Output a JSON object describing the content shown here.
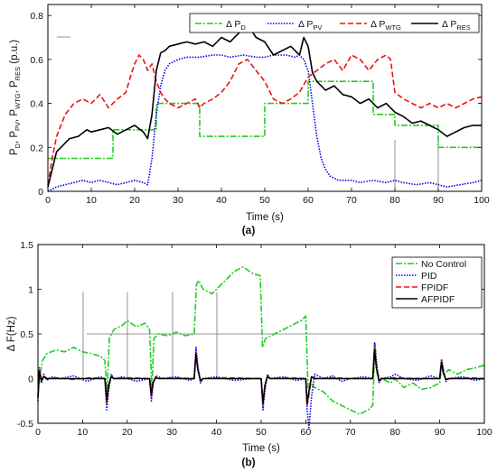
{
  "chart_data": [
    {
      "type": "line",
      "panel_label": "(a)",
      "title": "",
      "xlabel": "Time (s)",
      "ylabel": {
        "parts": [
          "P",
          "D",
          ", P",
          "PV",
          ", P",
          "WTG",
          ", P",
          "RES",
          " (p.u.)"
        ]
      },
      "xlim": [
        0,
        100
      ],
      "ylim": [
        0,
        0.85
      ],
      "xticks": [
        "0",
        "10",
        "20",
        "30",
        "40",
        "50",
        "60",
        "70",
        "80",
        "90",
        "100"
      ],
      "yticks": [
        "0",
        "0.2",
        "0.4",
        "0.6",
        "0.8"
      ],
      "ytick_values": [
        0,
        0.2,
        0.4,
        0.6,
        0.8
      ],
      "grid": false,
      "legend_position": "top-right",
      "series": [
        {
          "name": {
            "base": "Δ P",
            "sub": "D"
          },
          "color": "#22cc22",
          "style": "dashdot",
          "x": [
            0,
            7,
            7,
            15,
            15,
            25,
            25,
            35,
            35,
            50,
            50,
            60,
            60,
            75,
            75,
            80,
            80,
            90,
            90,
            100
          ],
          "y": [
            0.15,
            0.15,
            0.15,
            0.15,
            0.28,
            0.28,
            0.4,
            0.4,
            0.25,
            0.25,
            0.4,
            0.4,
            0.5,
            0.5,
            0.35,
            0.35,
            0.3,
            0.3,
            0.2,
            0.2
          ]
        },
        {
          "name": {
            "base": "Δ P",
            "sub": "PV"
          },
          "color": "#0000ee",
          "style": "dotted",
          "x": [
            0,
            1,
            2,
            4,
            6,
            8,
            10,
            12,
            14,
            16,
            18,
            20,
            22,
            23,
            24,
            25,
            26,
            27,
            28,
            30,
            32,
            35,
            38,
            40,
            42,
            45,
            48,
            50,
            52,
            55,
            57,
            58,
            59,
            60,
            61,
            62,
            63,
            64,
            65,
            67,
            70,
            72,
            75,
            78,
            80,
            82,
            85,
            88,
            90,
            92,
            95,
            98,
            100
          ],
          "y": [
            0.0,
            0.01,
            0.02,
            0.03,
            0.04,
            0.05,
            0.04,
            0.05,
            0.04,
            0.03,
            0.04,
            0.05,
            0.04,
            0.03,
            0.15,
            0.35,
            0.48,
            0.55,
            0.58,
            0.6,
            0.61,
            0.61,
            0.62,
            0.62,
            0.61,
            0.62,
            0.61,
            0.61,
            0.62,
            0.62,
            0.61,
            0.62,
            0.6,
            0.55,
            0.4,
            0.25,
            0.15,
            0.1,
            0.07,
            0.05,
            0.05,
            0.04,
            0.05,
            0.04,
            0.05,
            0.04,
            0.03,
            0.04,
            0.03,
            0.02,
            0.03,
            0.04,
            0.05
          ]
        },
        {
          "name": {
            "base": "Δ P",
            "sub": "WTG"
          },
          "color": "#ee1111",
          "style": "dashed",
          "x": [
            0,
            1,
            2,
            3,
            4,
            6,
            8,
            10,
            12,
            14,
            16,
            18,
            19,
            20,
            21,
            22,
            23,
            24,
            25,
            26,
            27,
            28,
            30,
            32,
            34,
            35,
            36,
            38,
            40,
            42,
            44,
            46,
            48,
            50,
            52,
            54,
            56,
            58,
            60,
            62,
            64,
            66,
            68,
            70,
            72,
            74,
            76,
            78,
            79,
            80,
            82,
            84,
            86,
            88,
            90,
            92,
            94,
            96,
            98,
            100
          ],
          "y": [
            0.03,
            0.15,
            0.25,
            0.3,
            0.35,
            0.4,
            0.42,
            0.4,
            0.44,
            0.38,
            0.42,
            0.45,
            0.52,
            0.58,
            0.62,
            0.6,
            0.55,
            0.58,
            0.5,
            0.45,
            0.42,
            0.4,
            0.38,
            0.4,
            0.42,
            0.38,
            0.4,
            0.42,
            0.45,
            0.5,
            0.58,
            0.6,
            0.55,
            0.5,
            0.42,
            0.4,
            0.42,
            0.45,
            0.52,
            0.55,
            0.58,
            0.6,
            0.55,
            0.62,
            0.6,
            0.55,
            0.6,
            0.62,
            0.6,
            0.45,
            0.42,
            0.4,
            0.38,
            0.4,
            0.38,
            0.4,
            0.38,
            0.4,
            0.42,
            0.43
          ]
        },
        {
          "name": {
            "base": "Δ P",
            "sub": "RES"
          },
          "color": "#000000",
          "style": "solid",
          "x": [
            0,
            1,
            2,
            3,
            5,
            7,
            9,
            10,
            12,
            14,
            16,
            18,
            20,
            22,
            23,
            24,
            25,
            26,
            27,
            28,
            30,
            32,
            34,
            36,
            38,
            40,
            42,
            44,
            46,
            48,
            50,
            52,
            54,
            56,
            58,
            59,
            60,
            61,
            62,
            64,
            66,
            68,
            70,
            72,
            74,
            76,
            78,
            80,
            82,
            84,
            86,
            88,
            90,
            92,
            94,
            96,
            98,
            100
          ],
          "y": [
            0.02,
            0.1,
            0.18,
            0.2,
            0.24,
            0.25,
            0.28,
            0.27,
            0.28,
            0.29,
            0.26,
            0.28,
            0.3,
            0.27,
            0.24,
            0.35,
            0.55,
            0.63,
            0.64,
            0.66,
            0.67,
            0.68,
            0.67,
            0.68,
            0.66,
            0.7,
            0.68,
            0.72,
            0.76,
            0.7,
            0.68,
            0.62,
            0.64,
            0.66,
            0.62,
            0.7,
            0.66,
            0.54,
            0.5,
            0.46,
            0.48,
            0.44,
            0.43,
            0.4,
            0.42,
            0.38,
            0.4,
            0.36,
            0.34,
            0.31,
            0.32,
            0.3,
            0.28,
            0.25,
            0.27,
            0.29,
            0.3,
            0.3
          ]
        }
      ]
    },
    {
      "type": "line",
      "panel_label": "(b)",
      "title": "",
      "xlabel": "Time (s)",
      "ylabel": {
        "parts": [
          "Δ F(Hz)"
        ]
      },
      "xlim": [
        0,
        100
      ],
      "ylim": [
        -0.5,
        1.5
      ],
      "xticks": [
        "0",
        "10",
        "20",
        "30",
        "40",
        "50",
        "60",
        "70",
        "80",
        "90",
        "100"
      ],
      "yticks": [
        "-0.5",
        "0",
        "0.5",
        "1",
        "1.5"
      ],
      "ytick_values": [
        -0.5,
        0,
        0.5,
        1,
        1.5
      ],
      "grid": false,
      "legend_position": "top-right",
      "series": [
        {
          "name": {
            "base": "No Control",
            "sub": ""
          },
          "color": "#22cc22",
          "style": "dashdot",
          "x": [
            0,
            0.5,
            1,
            2,
            4,
            6,
            8,
            10,
            12,
            14,
            15,
            15.5,
            16,
            17,
            19,
            20,
            22,
            24,
            25,
            25.5,
            26,
            27,
            29,
            31,
            33,
            35,
            35.5,
            36,
            37,
            39,
            40,
            42,
            44,
            46,
            48,
            49.8,
            50.3,
            51,
            53,
            55,
            57,
            59,
            60,
            60.5,
            61,
            62,
            64,
            66,
            68,
            70,
            72,
            74,
            75,
            75.5,
            76,
            77,
            79,
            80,
            82,
            84,
            86,
            88,
            90,
            90.5,
            91,
            92,
            94,
            96,
            98,
            100
          ],
          "y": [
            -0.2,
            0.05,
            0.2,
            0.28,
            0.32,
            0.3,
            0.35,
            0.3,
            0.28,
            0.25,
            0.2,
            -0.15,
            0.45,
            0.55,
            0.6,
            0.65,
            0.58,
            0.62,
            0.55,
            -0.1,
            0.45,
            0.5,
            0.48,
            0.52,
            0.48,
            0.5,
            1.05,
            1.1,
            1.0,
            0.95,
            1.0,
            1.1,
            1.2,
            1.25,
            1.18,
            1.15,
            0.35,
            0.45,
            0.5,
            0.55,
            0.6,
            0.65,
            0.7,
            -0.1,
            -0.05,
            -0.1,
            -0.15,
            -0.25,
            -0.3,
            -0.35,
            -0.4,
            -0.35,
            -0.3,
            0.4,
            0.05,
            0.0,
            -0.05,
            0.0,
            -0.1,
            -0.05,
            -0.12,
            -0.1,
            -0.05,
            0.2,
            0.05,
            0.1,
            0.05,
            0.1,
            0.12,
            0.15
          ]
        },
        {
          "name": {
            "base": "PID",
            "sub": ""
          },
          "color": "#0000ee",
          "style": "dotted",
          "x": [
            0,
            0.3,
            0.8,
            1.3,
            2,
            3,
            5,
            8,
            11,
            14,
            15,
            15.4,
            15.8,
            16.4,
            17,
            19,
            22,
            25,
            25.4,
            25.8,
            26.4,
            28,
            31,
            34,
            35,
            35.4,
            35.8,
            36.4,
            37,
            40,
            44,
            48,
            50,
            50.4,
            50.8,
            51.4,
            52,
            55,
            58,
            60,
            60.3,
            60.7,
            61.3,
            62,
            64,
            66,
            68,
            70,
            73,
            75,
            75.4,
            75.8,
            76.4,
            77,
            79,
            80,
            82,
            85,
            88,
            90,
            90.4,
            90.8,
            91.4,
            92,
            95,
            98,
            100
          ],
          "y": [
            -0.25,
            0.12,
            -0.05,
            0.05,
            -0.02,
            0.02,
            0.0,
            0.03,
            -0.03,
            0.02,
            0.0,
            -0.35,
            -0.15,
            0.05,
            0.0,
            0.02,
            -0.03,
            0.0,
            -0.25,
            -0.05,
            0.03,
            0.0,
            0.02,
            -0.02,
            0.0,
            0.35,
            0.15,
            -0.05,
            0.0,
            0.02,
            -0.02,
            0.0,
            0.0,
            -0.35,
            -0.15,
            0.05,
            0.0,
            0.02,
            -0.02,
            0.0,
            -0.35,
            -0.55,
            -0.2,
            0.05,
            0.0,
            0.03,
            -0.03,
            0.0,
            0.02,
            0.0,
            0.4,
            0.2,
            -0.05,
            0.0,
            0.02,
            0.05,
            0.0,
            -0.02,
            0.03,
            0.0,
            0.22,
            0.1,
            -0.03,
            0.0,
            0.02,
            -0.02,
            0.0
          ]
        },
        {
          "name": {
            "base": "FPIDF",
            "sub": ""
          },
          "color": "#ee1111",
          "style": "dashed",
          "x": [
            0,
            0.3,
            0.8,
            1.3,
            2,
            4,
            8,
            12,
            15,
            15.4,
            15.8,
            16.4,
            17,
            20,
            25,
            25.4,
            25.8,
            26.4,
            27,
            30,
            35,
            35.4,
            35.8,
            36.4,
            37,
            42,
            50,
            50.4,
            50.8,
            51.4,
            52,
            56,
            60,
            60.3,
            60.7,
            61.3,
            62,
            66,
            70,
            75,
            75.4,
            75.8,
            76.4,
            77,
            80,
            85,
            90,
            90.4,
            90.8,
            91.4,
            92,
            96,
            100
          ],
          "y": [
            -0.22,
            0.1,
            -0.03,
            0.03,
            0.0,
            0.01,
            -0.01,
            0.01,
            0.0,
            -0.28,
            -0.1,
            0.03,
            0.0,
            0.01,
            0.0,
            -0.2,
            -0.05,
            0.02,
            0.0,
            0.01,
            0.0,
            0.3,
            0.12,
            -0.03,
            0.0,
            0.01,
            0.0,
            -0.3,
            -0.1,
            0.03,
            0.0,
            0.01,
            0.0,
            -0.3,
            -0.18,
            0.03,
            0.0,
            0.01,
            0.0,
            0.0,
            0.35,
            0.15,
            -0.03,
            0.0,
            0.01,
            0.0,
            0.0,
            0.2,
            0.08,
            -0.02,
            0.0,
            0.01,
            0.0
          ]
        },
        {
          "name": {
            "base": "AFPIDF",
            "sub": ""
          },
          "color": "#000000",
          "style": "solid",
          "x": [
            0,
            0.3,
            0.8,
            1.3,
            2,
            4,
            8,
            12,
            15,
            15.4,
            15.8,
            16.4,
            17,
            20,
            25,
            25.4,
            25.8,
            26.4,
            27,
            30,
            35,
            35.4,
            35.8,
            36.4,
            37,
            42,
            50,
            50.4,
            50.8,
            51.4,
            52,
            56,
            60,
            60.3,
            60.7,
            61.3,
            62,
            66,
            70,
            75,
            75.4,
            75.8,
            76.4,
            77,
            80,
            85,
            90,
            90.4,
            90.8,
            91.4,
            92,
            96,
            100
          ],
          "y": [
            -0.2,
            0.08,
            -0.02,
            0.02,
            0.0,
            0.0,
            0.0,
            0.0,
            0.0,
            -0.25,
            -0.08,
            0.02,
            0.0,
            0.0,
            0.0,
            -0.18,
            -0.04,
            0.01,
            0.0,
            0.0,
            0.0,
            0.28,
            0.1,
            -0.02,
            0.0,
            0.0,
            0.0,
            -0.28,
            -0.08,
            0.02,
            0.0,
            0.0,
            0.0,
            -0.28,
            -0.14,
            0.02,
            0.0,
            0.0,
            0.0,
            0.0,
            0.32,
            0.12,
            -0.02,
            0.0,
            0.0,
            0.0,
            0.0,
            0.18,
            0.06,
            -0.01,
            0.0,
            0.0,
            0.0
          ]
        }
      ]
    }
  ]
}
